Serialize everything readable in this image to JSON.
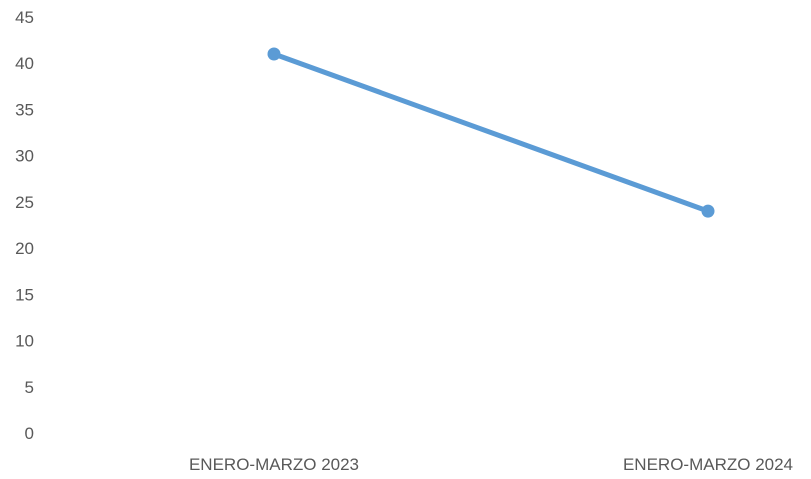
{
  "chart_data": {
    "type": "line",
    "title": "",
    "xlabel": "",
    "ylabel": "",
    "categories": [
      "ENERO-MARZO 2023",
      "ENERO-MARZO 2024"
    ],
    "series": [
      {
        "values": [
          41,
          24
        ],
        "color": "#5B9BD5"
      }
    ],
    "ylim": [
      0,
      45
    ],
    "yticks": [
      "0",
      "5",
      "10",
      "15",
      "20",
      "25",
      "30",
      "35",
      "40",
      "45"
    ],
    "grid": false,
    "legend": "none"
  }
}
